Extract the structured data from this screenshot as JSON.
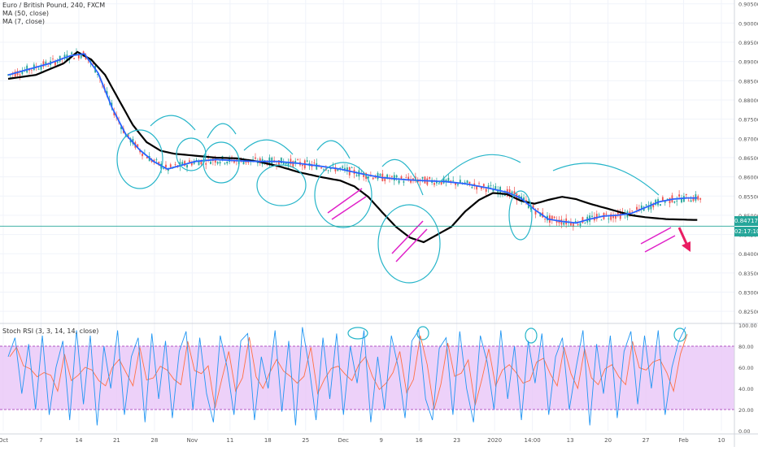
{
  "legend": {
    "main": "Euro / British Pound, 240, FXCM",
    "ma50": "MA (50, close)",
    "ma7": "MA (7, close)",
    "stoch": "Stoch RSI (3, 3, 14, 14, close)"
  },
  "current": {
    "price": "0.84717",
    "countdown": "02:17:10",
    "price_value": 0.84717
  },
  "colors": {
    "candle_up": "#26a69a",
    "candle_down": "#ef5350",
    "ma50": "#000000",
    "ma7": "#2962ff",
    "annotation": "#26b5c9",
    "pink": "#e020c8",
    "arrow": "#e91e63",
    "rsi_band": "#e8c6f7",
    "rsi_k": "#2196f3",
    "rsi_d": "#ff7043",
    "price_tag": "#26a69a"
  },
  "chart_data": [
    {
      "type": "line",
      "title": "Euro / British Pound, 240, FXCM",
      "x_ticks": [
        "Oct",
        "7",
        "14",
        "21",
        "28",
        "Nov",
        "11",
        "18",
        "25",
        "Dec",
        "9",
        "16",
        "23",
        "2020",
        "14:00",
        "13",
        "20",
        "27",
        "Feb",
        "10"
      ],
      "y_ticks": [
        "0.90500",
        "0.90000",
        "0.89500",
        "0.89000",
        "0.88500",
        "0.88000",
        "0.87500",
        "0.87000",
        "0.86500",
        "0.86000",
        "0.85500",
        "0.85000",
        "0.84500",
        "0.84000",
        "0.83500",
        "0.83000",
        "0.82500"
      ],
      "ylim": [
        0.8225,
        0.906
      ],
      "n": 100,
      "series": [
        {
          "name": "MA (7, close)",
          "points": [
            [
              0,
              0.8865
            ],
            [
              3,
              0.888
            ],
            [
              6,
              0.8895
            ],
            [
              9,
              0.8915
            ],
            [
              11,
              0.892
            ],
            [
              13,
              0.887
            ],
            [
              15,
              0.878
            ],
            [
              17,
              0.871
            ],
            [
              19,
              0.867
            ],
            [
              21,
              0.864
            ],
            [
              23,
              0.862
            ],
            [
              25,
              0.863
            ],
            [
              27,
              0.864
            ],
            [
              30,
              0.8645
            ],
            [
              33,
              0.8642
            ],
            [
              36,
              0.864
            ],
            [
              39,
              0.864
            ],
            [
              42,
              0.8635
            ],
            [
              45,
              0.8628
            ],
            [
              48,
              0.862
            ],
            [
              51,
              0.8608
            ],
            [
              54,
              0.8598
            ],
            [
              57,
              0.8593
            ],
            [
              60,
              0.859
            ],
            [
              63,
              0.8588
            ],
            [
              66,
              0.8582
            ],
            [
              69,
              0.8572
            ],
            [
              72,
              0.856
            ],
            [
              74,
              0.8545
            ],
            [
              76,
              0.8515
            ],
            [
              78,
              0.849
            ],
            [
              80,
              0.8484
            ],
            [
              82,
              0.848
            ],
            [
              84,
              0.849
            ],
            [
              86,
              0.8498
            ],
            [
              88,
              0.85
            ],
            [
              90,
              0.8505
            ],
            [
              92,
              0.852
            ],
            [
              94,
              0.8535
            ],
            [
              96,
              0.8542
            ],
            [
              98,
              0.8545
            ],
            [
              99,
              0.8545
            ]
          ]
        },
        {
          "name": "MA (50, close)",
          "points": [
            [
              0,
              0.8855
            ],
            [
              4,
              0.8865
            ],
            [
              8,
              0.8895
            ],
            [
              10,
              0.8925
            ],
            [
              12,
              0.8905
            ],
            [
              14,
              0.8865
            ],
            [
              16,
              0.88
            ],
            [
              18,
              0.8735
            ],
            [
              20,
              0.869
            ],
            [
              22,
              0.8668
            ],
            [
              24,
              0.866
            ],
            [
              27,
              0.8655
            ],
            [
              30,
              0.865
            ],
            [
              33,
              0.8648
            ],
            [
              36,
              0.864
            ],
            [
              39,
              0.8628
            ],
            [
              42,
              0.8612
            ],
            [
              45,
              0.86
            ],
            [
              48,
              0.859
            ],
            [
              50,
              0.8575
            ],
            [
              52,
              0.8548
            ],
            [
              54,
              0.8508
            ],
            [
              56,
              0.847
            ],
            [
              58,
              0.8442
            ],
            [
              60,
              0.843
            ],
            [
              62,
              0.845
            ],
            [
              64,
              0.847
            ],
            [
              66,
              0.851
            ],
            [
              68,
              0.854
            ],
            [
              70,
              0.8558
            ],
            [
              72,
              0.8555
            ],
            [
              74,
              0.8538
            ],
            [
              76,
              0.853
            ],
            [
              78,
              0.854
            ],
            [
              80,
              0.8548
            ],
            [
              82,
              0.8542
            ],
            [
              84,
              0.853
            ],
            [
              86,
              0.852
            ],
            [
              88,
              0.851
            ],
            [
              90,
              0.85
            ],
            [
              92,
              0.8495
            ],
            [
              95,
              0.849
            ],
            [
              99,
              0.8488
            ]
          ]
        }
      ]
    },
    {
      "type": "line",
      "title": "Stoch RSI (3, 3, 14, 14, close)",
      "y_ticks": [
        "100.00",
        "80.00",
        "60.00",
        "40.00",
        "20.00",
        "0.00"
      ],
      "ylim": [
        0,
        100
      ],
      "band": [
        20,
        80
      ],
      "series": [
        {
          "name": "K",
          "values": [
            70,
            88,
            35,
            82,
            20,
            90,
            15,
            60,
            85,
            10,
            95,
            25,
            90,
            5,
            80,
            40,
            95,
            15,
            70,
            88,
            8,
            92,
            30,
            85,
            12,
            75,
            94,
            20,
            88,
            35,
            8,
            90,
            60,
            15,
            85,
            92,
            10,
            70,
            40,
            95,
            18,
            85,
            5,
            98,
            60,
            10,
            88,
            30,
            92,
            15,
            80,
            45,
            95,
            8,
            70,
            20,
            90,
            60,
            12,
            85,
            95,
            30,
            10,
            78,
            88,
            15,
            94,
            40,
            8,
            90,
            65,
            20,
            95,
            30,
            80,
            10,
            85,
            45,
            92,
            15,
            70,
            88,
            20,
            60,
            95,
            5,
            82,
            35,
            90,
            12,
            75,
            94,
            25,
            90,
            40,
            95,
            15,
            60,
            85,
            98
          ]
        }
      ]
    }
  ]
}
